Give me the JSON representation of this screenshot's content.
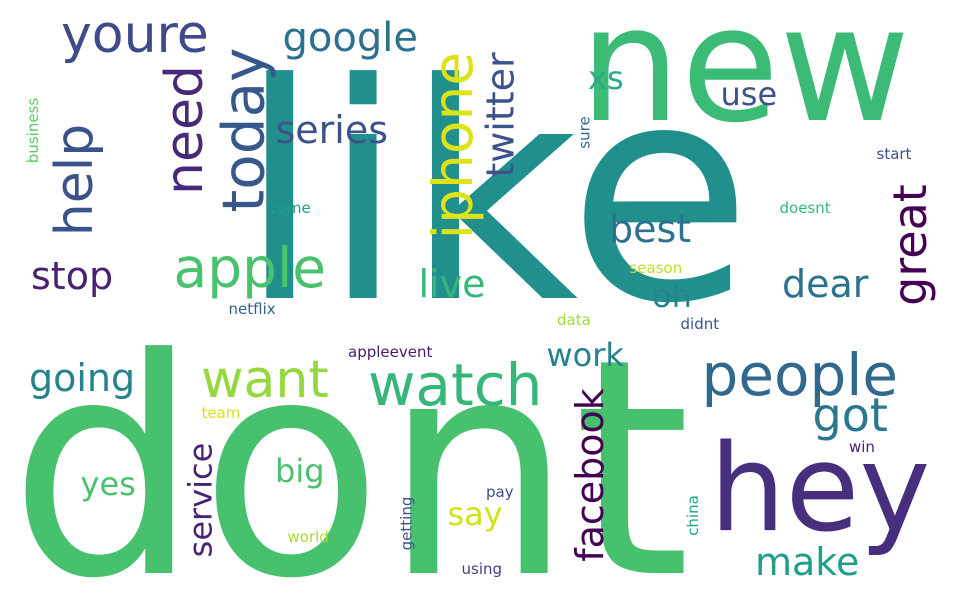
{
  "word_cloud": {
    "words": [
      {
        "text": "like",
        "color": "#21908d"
      },
      {
        "text": "dont",
        "color": "#48c16e"
      },
      {
        "text": "new",
        "color": "#3bbb75"
      },
      {
        "text": "hey",
        "color": "#472f7d"
      },
      {
        "text": "people",
        "color": "#31688e"
      },
      {
        "text": "watch",
        "color": "#35b779"
      },
      {
        "text": "apple",
        "color": "#4ac16d"
      },
      {
        "text": "want",
        "color": "#95d840"
      },
      {
        "text": "iphone",
        "color": "#dde318"
      },
      {
        "text": "today",
        "color": "#38588c"
      },
      {
        "text": "need",
        "color": "#482878"
      },
      {
        "text": "help",
        "color": "#3b528b"
      },
      {
        "text": "youre",
        "color": "#3e4a89"
      },
      {
        "text": "google",
        "color": "#2c728e"
      },
      {
        "text": "series",
        "color": "#3b528b"
      },
      {
        "text": "twitter",
        "color": "#3b528b"
      },
      {
        "text": "great",
        "color": "#440154"
      },
      {
        "text": "got",
        "color": "#2a788e"
      },
      {
        "text": "facebook",
        "color": "#440154"
      },
      {
        "text": "going",
        "color": "#25838e"
      },
      {
        "text": "stop",
        "color": "#482173"
      },
      {
        "text": "best",
        "color": "#2c728e"
      },
      {
        "text": "live",
        "color": "#35b779"
      },
      {
        "text": "dear",
        "color": "#2c728e"
      },
      {
        "text": "work",
        "color": "#26828e"
      },
      {
        "text": "make",
        "color": "#1f9e89"
      },
      {
        "text": "service",
        "color": "#482475"
      },
      {
        "text": "say",
        "color": "#d2e21b"
      },
      {
        "text": "yes",
        "color": "#4ac16d"
      },
      {
        "text": "big",
        "color": "#4ac16d"
      },
      {
        "text": "oh",
        "color": "#25838e"
      },
      {
        "text": "xs",
        "color": "#27ad81"
      },
      {
        "text": "use",
        "color": "#3b528b"
      },
      {
        "text": "netflix",
        "color": "#33638d"
      },
      {
        "text": "appleevent",
        "color": "#481a6c"
      },
      {
        "text": "come",
        "color": "#1f9e89"
      },
      {
        "text": "doesnt",
        "color": "#35b779"
      },
      {
        "text": "start",
        "color": "#3b528b"
      },
      {
        "text": "sure",
        "color": "#31688e"
      },
      {
        "text": "business",
        "color": "#5ec962"
      },
      {
        "text": "season",
        "color": "#c2df23"
      },
      {
        "text": "data",
        "color": "#9fda3a"
      },
      {
        "text": "didnt",
        "color": "#39568c"
      },
      {
        "text": "team",
        "color": "#d8e219"
      },
      {
        "text": "win",
        "color": "#481f70"
      },
      {
        "text": "pay",
        "color": "#3e4a89"
      },
      {
        "text": "getting",
        "color": "#3b528b"
      },
      {
        "text": "world",
        "color": "#a8db34"
      },
      {
        "text": "using",
        "color": "#433e85"
      },
      {
        "text": "china",
        "color": "#22a785"
      }
    ]
  }
}
